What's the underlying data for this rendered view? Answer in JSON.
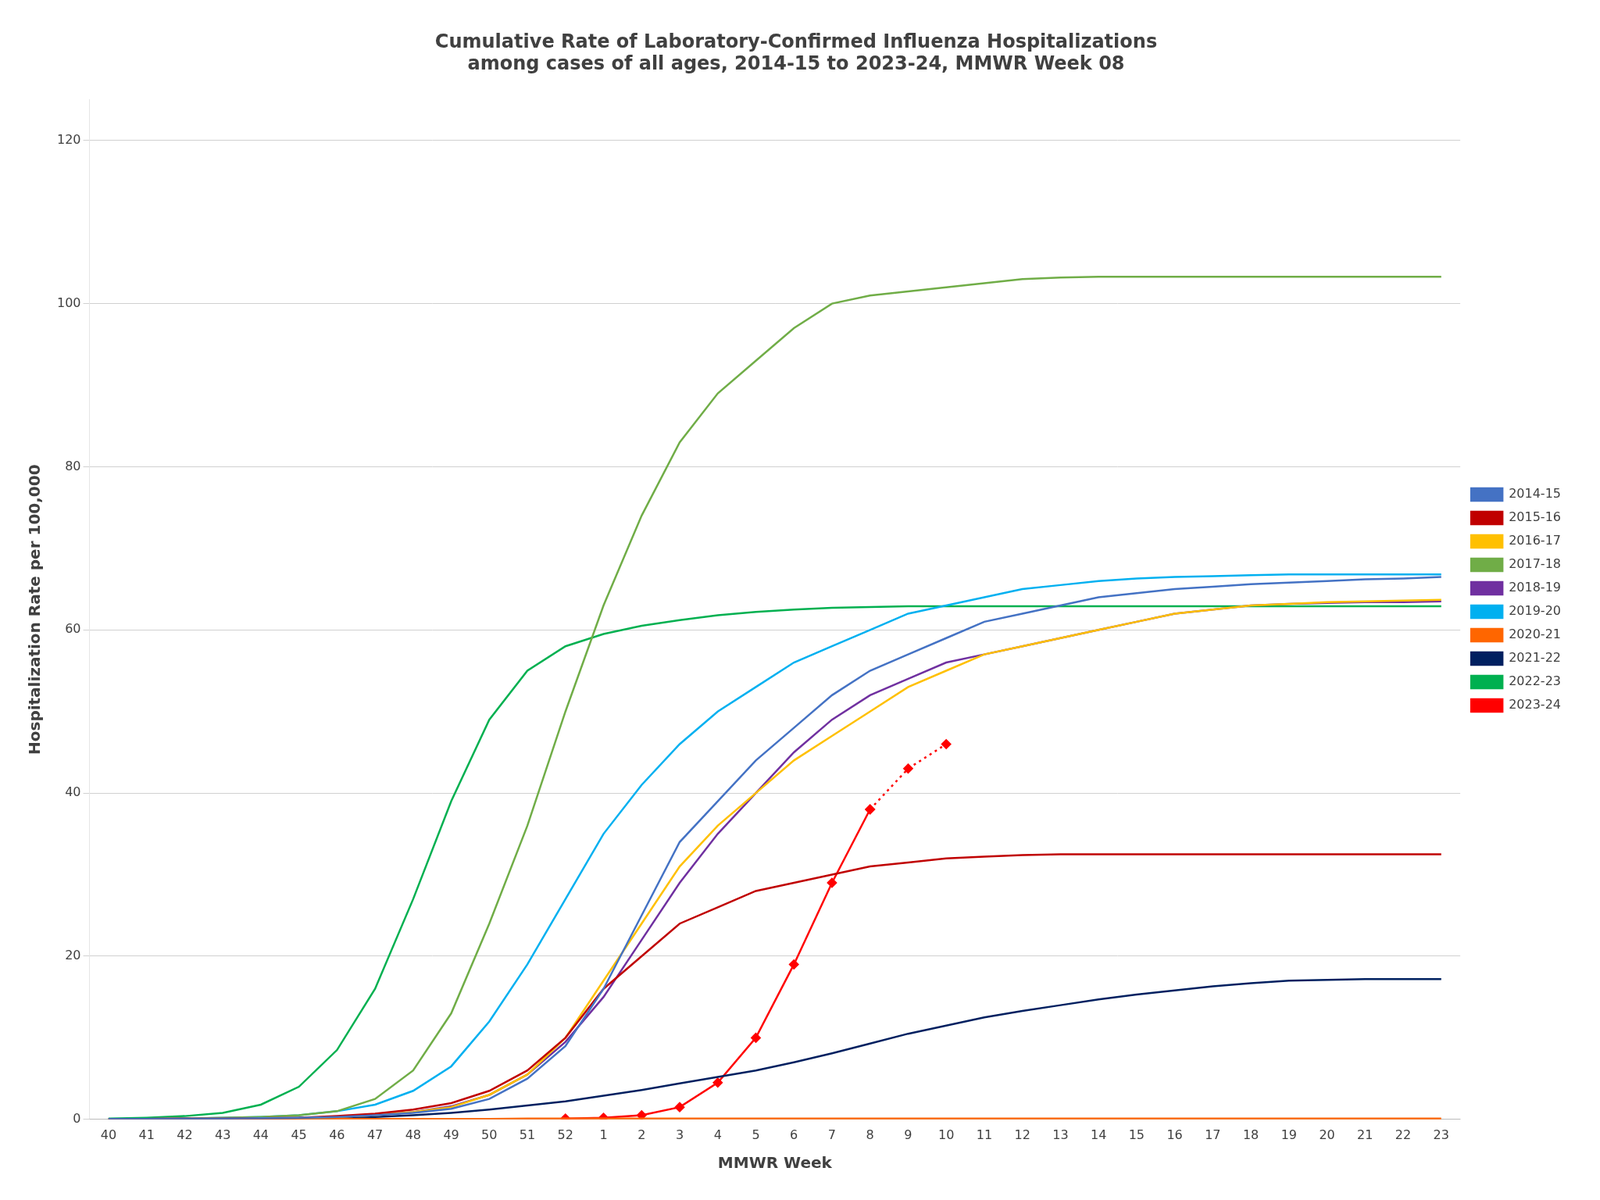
{
  "chart_data": {
    "type": "line",
    "title": "Cumulative Rate of Laboratory-Confirmed Influenza Hospitalizations\namong cases of all ages, 2014-15 to 2023-24, MMWR Week 08",
    "x_label": "MMWR Week",
    "y_label": "Hospitalization Rate per 100,000",
    "categories": [
      "40",
      "41",
      "42",
      "43",
      "44",
      "45",
      "46",
      "47",
      "48",
      "49",
      "50",
      "51",
      "52",
      "1",
      "2",
      "3",
      "4",
      "5",
      "6",
      "7",
      "8",
      "9",
      "10",
      "11",
      "12",
      "13",
      "14",
      "15",
      "16",
      "17",
      "18",
      "19",
      "20",
      "21",
      "22",
      "23"
    ],
    "ylim": [
      0,
      125
    ],
    "yticks": [
      0,
      20,
      40,
      60,
      80,
      100,
      120
    ],
    "grid": "y",
    "legend": "right",
    "series": [
      {
        "name": "2014-15",
        "color": "#4472C4",
        "line_style": "solid",
        "values": [
          0.05,
          0.05,
          0.1,
          0.1,
          0.15,
          0.2,
          0.3,
          0.5,
          0.8,
          1.3,
          2.5,
          5.0,
          9.0,
          16,
          25,
          34,
          39,
          44,
          48,
          52,
          55,
          57,
          59,
          61,
          62,
          63,
          64,
          64.5,
          65,
          65.3,
          65.6,
          65.8,
          66,
          66.2,
          66.3,
          66.5
        ]
      },
      {
        "name": "2015-16",
        "color": "#C00000",
        "line_style": "solid",
        "values": [
          0.05,
          0.05,
          0.1,
          0.1,
          0.15,
          0.2,
          0.4,
          0.7,
          1.2,
          2.0,
          3.5,
          6.0,
          10,
          16,
          20,
          24,
          26,
          28,
          29,
          30,
          31,
          31.5,
          32,
          32.2,
          32.4,
          32.5,
          32.5,
          32.5,
          32.5,
          32.5,
          32.5,
          32.5,
          32.5,
          32.5,
          32.5,
          32.5
        ]
      },
      {
        "name": "2016-17",
        "color": "#FFC000",
        "line_style": "solid",
        "values": [
          0.05,
          0.05,
          0.1,
          0.1,
          0.15,
          0.2,
          0.3,
          0.5,
          0.9,
          1.5,
          3.0,
          5.5,
          10,
          17,
          24,
          31,
          36,
          40,
          44,
          47,
          50,
          53,
          55,
          57,
          58,
          59,
          60,
          61,
          62,
          62.5,
          63,
          63.2,
          63.4,
          63.5,
          63.6,
          63.7
        ]
      },
      {
        "name": "2017-18",
        "color": "#70AD47",
        "line_style": "solid",
        "values": [
          0.05,
          0.05,
          0.1,
          0.2,
          0.3,
          0.5,
          1.0,
          2.5,
          6,
          13,
          24,
          36,
          50,
          63,
          74,
          83,
          89,
          93,
          97,
          100,
          101,
          101.5,
          102,
          102.5,
          103,
          103.2,
          103.3,
          103.3,
          103.3,
          103.3,
          103.3,
          103.3,
          103.3,
          103.3,
          103.3,
          103.3
        ]
      },
      {
        "name": "2018-19",
        "color": "#7030A0",
        "line_style": "solid",
        "values": [
          0.05,
          0.05,
          0.1,
          0.1,
          0.15,
          0.2,
          0.3,
          0.5,
          0.9,
          1.6,
          3.0,
          5.5,
          9.5,
          15,
          22,
          29,
          35,
          40,
          45,
          49,
          52,
          54,
          56,
          57,
          58,
          59,
          60,
          61,
          62,
          62.5,
          63,
          63.2,
          63.3,
          63.4,
          63.4,
          63.5
        ]
      },
      {
        "name": "2019-20",
        "color": "#00B0F0",
        "line_style": "solid",
        "values": [
          0.05,
          0.05,
          0.1,
          0.2,
          0.3,
          0.5,
          1.0,
          1.8,
          3.5,
          6.5,
          12,
          19,
          27,
          35,
          41,
          46,
          50,
          53,
          56,
          58,
          60,
          62,
          63,
          64,
          65,
          65.5,
          66,
          66.3,
          66.5,
          66.6,
          66.7,
          66.8,
          66.8,
          66.8,
          66.8,
          66.8
        ]
      },
      {
        "name": "2020-21",
        "color": "#FF6600",
        "line_style": "solid",
        "values": [
          0.05,
          0.05,
          0.05,
          0.05,
          0.05,
          0.05,
          0.05,
          0.05,
          0.05,
          0.05,
          0.05,
          0.1,
          0.1,
          0.1,
          0.1,
          0.1,
          0.1,
          0.1,
          0.1,
          0.1,
          0.1,
          0.1,
          0.1,
          0.1,
          0.1,
          0.1,
          0.1,
          0.1,
          0.1,
          0.1,
          0.1,
          0.1,
          0.1,
          0.1,
          0.1,
          0.1
        ]
      },
      {
        "name": "2021-22",
        "color": "#002060",
        "line_style": "solid",
        "values": [
          0.05,
          0.05,
          0.05,
          0.05,
          0.1,
          0.15,
          0.2,
          0.3,
          0.5,
          0.8,
          1.2,
          1.7,
          2.2,
          2.9,
          3.6,
          4.4,
          5.2,
          6.0,
          7.0,
          8.1,
          9.3,
          10.5,
          11.5,
          12.5,
          13.3,
          14.0,
          14.7,
          15.3,
          15.8,
          16.3,
          16.7,
          17.0,
          17.1,
          17.2,
          17.2,
          17.2
        ]
      },
      {
        "name": "2022-23",
        "color": "#00B050",
        "line_style": "solid",
        "values": [
          0.1,
          0.2,
          0.4,
          0.8,
          1.8,
          4.0,
          8.5,
          16,
          27,
          39,
          49,
          55,
          58,
          59.5,
          60.5,
          61.2,
          61.8,
          62.2,
          62.5,
          62.7,
          62.8,
          62.9,
          62.9,
          62.9,
          62.9,
          62.9,
          62.9,
          62.9,
          62.9,
          62.9,
          62.9,
          62.9,
          62.9,
          62.9,
          62.9,
          62.9
        ]
      },
      {
        "name": "2023-24",
        "color": "#FF0000",
        "line_style": "solid",
        "marker": "diamond",
        "values": [
          null,
          null,
          null,
          null,
          null,
          null,
          null,
          null,
          null,
          null,
          null,
          null,
          0.1,
          0.2,
          0.5,
          1.5,
          4.5,
          10,
          19,
          29,
          38,
          null,
          null,
          null,
          null,
          null,
          null,
          null,
          null,
          null,
          null,
          null,
          null,
          null,
          null,
          null
        ]
      },
      {
        "name": "2023-24",
        "color": "#FF0000",
        "line_style": "dotted",
        "marker": "diamond",
        "values": [
          null,
          null,
          null,
          null,
          null,
          null,
          null,
          null,
          null,
          null,
          null,
          null,
          null,
          null,
          null,
          null,
          null,
          null,
          null,
          null,
          38,
          43,
          46,
          null,
          null,
          null,
          null,
          null,
          null,
          null,
          null,
          null,
          null,
          null,
          null,
          null
        ]
      }
    ]
  }
}
